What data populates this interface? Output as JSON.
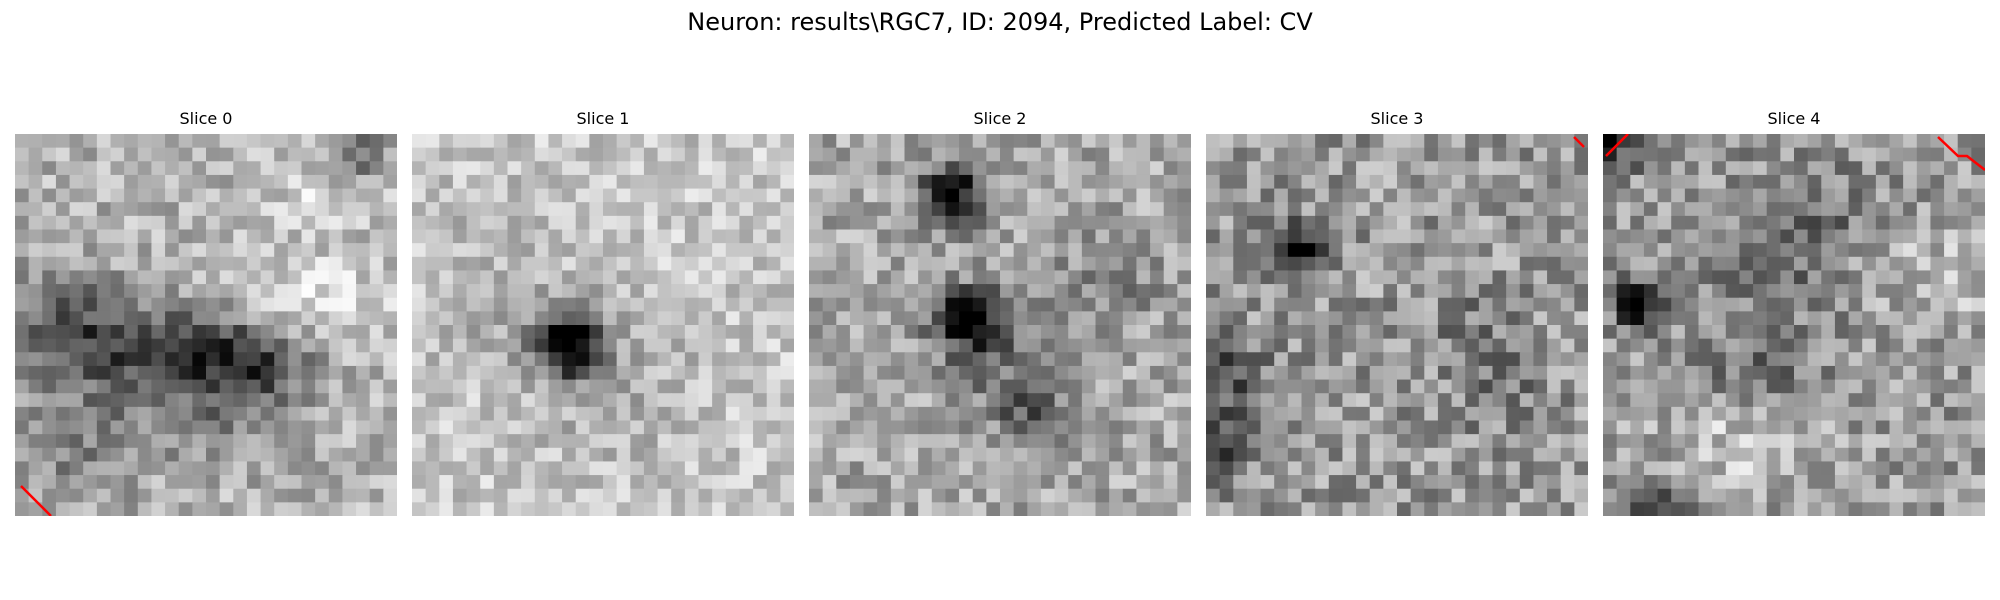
{
  "figure": {
    "title": "Neuron: results\\RGC7, ID: 2094, Predicted Label: CV"
  },
  "slices": [
    {
      "title": "Slice 0"
    },
    {
      "title": "Slice 1"
    },
    {
      "title": "Slice 2"
    },
    {
      "title": "Slice 3"
    },
    {
      "title": "Slice 4"
    }
  ],
  "colors": {
    "background": "#ffffff",
    "outline": "#ff0000",
    "colormap": "gray_r"
  }
}
